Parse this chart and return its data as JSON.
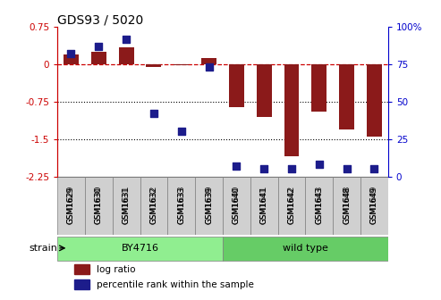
{
  "title": "GDS93 / 5020",
  "samples": [
    "GSM1629",
    "GSM1630",
    "GSM1631",
    "GSM1632",
    "GSM1633",
    "GSM1639",
    "GSM1640",
    "GSM1641",
    "GSM1642",
    "GSM1643",
    "GSM1648",
    "GSM1649"
  ],
  "log_ratio": [
    0.2,
    0.25,
    0.35,
    -0.05,
    -0.02,
    0.12,
    -0.85,
    -1.05,
    -1.85,
    -0.95,
    -1.3,
    -1.45
  ],
  "percentile_rank": [
    82,
    87,
    92,
    42,
    30,
    73,
    7,
    5,
    5,
    8,
    5,
    5
  ],
  "groups": [
    {
      "label": "BY4716",
      "start": 0,
      "end": 6,
      "color": "#90EE90"
    },
    {
      "label": "wild type",
      "start": 6,
      "end": 12,
      "color": "#66CC66"
    }
  ],
  "ylim_left": [
    -2.25,
    0.75
  ],
  "ylim_right": [
    0,
    100
  ],
  "yticks_left": [
    0.75,
    0,
    -0.75,
    -1.5,
    -2.25
  ],
  "yticks_right": [
    100,
    75,
    50,
    25,
    0
  ],
  "hline_y": 0,
  "dotted_lines": [
    -0.75,
    -1.5
  ],
  "bar_color": "#8B1A1A",
  "dot_color": "#1C1C8B",
  "bar_width": 0.55,
  "dot_size": 40,
  "background_color": "#ffffff",
  "plot_bg_color": "#ffffff",
  "left_axis_color": "#CC0000",
  "right_axis_color": "#0000CC",
  "strain_label": "strain",
  "legend_log_ratio": "log ratio",
  "legend_percentile": "percentile rank within the sample",
  "tick_box_color": "#D0D0D0"
}
